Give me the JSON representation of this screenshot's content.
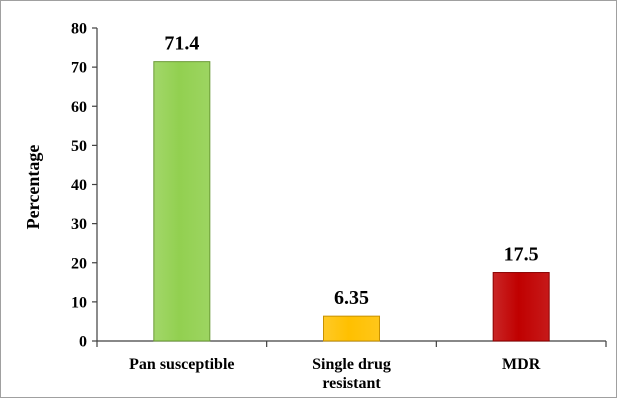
{
  "chart_data": {
    "type": "bar",
    "title": "",
    "xlabel": "",
    "ylabel": "Percentage",
    "categories": [
      "Pan susceptible",
      "Single drug resistant",
      "MDR"
    ],
    "category_lines": [
      [
        "Pan susceptible"
      ],
      [
        "Single drug",
        "resistant"
      ],
      [
        "MDR"
      ]
    ],
    "values": [
      71.4,
      6.35,
      17.5
    ],
    "data_labels": [
      "71.4",
      "6.35",
      "17.5"
    ],
    "ylim": [
      0,
      80
    ],
    "yticks": [
      0,
      10,
      20,
      30,
      40,
      50,
      60,
      70,
      80
    ],
    "grid": false,
    "legend": "none",
    "colors": [
      "#92d050",
      "#ffc000",
      "#c00000"
    ],
    "border_colors": [
      "#6a9a35",
      "#c79100",
      "#8b0000"
    ]
  }
}
